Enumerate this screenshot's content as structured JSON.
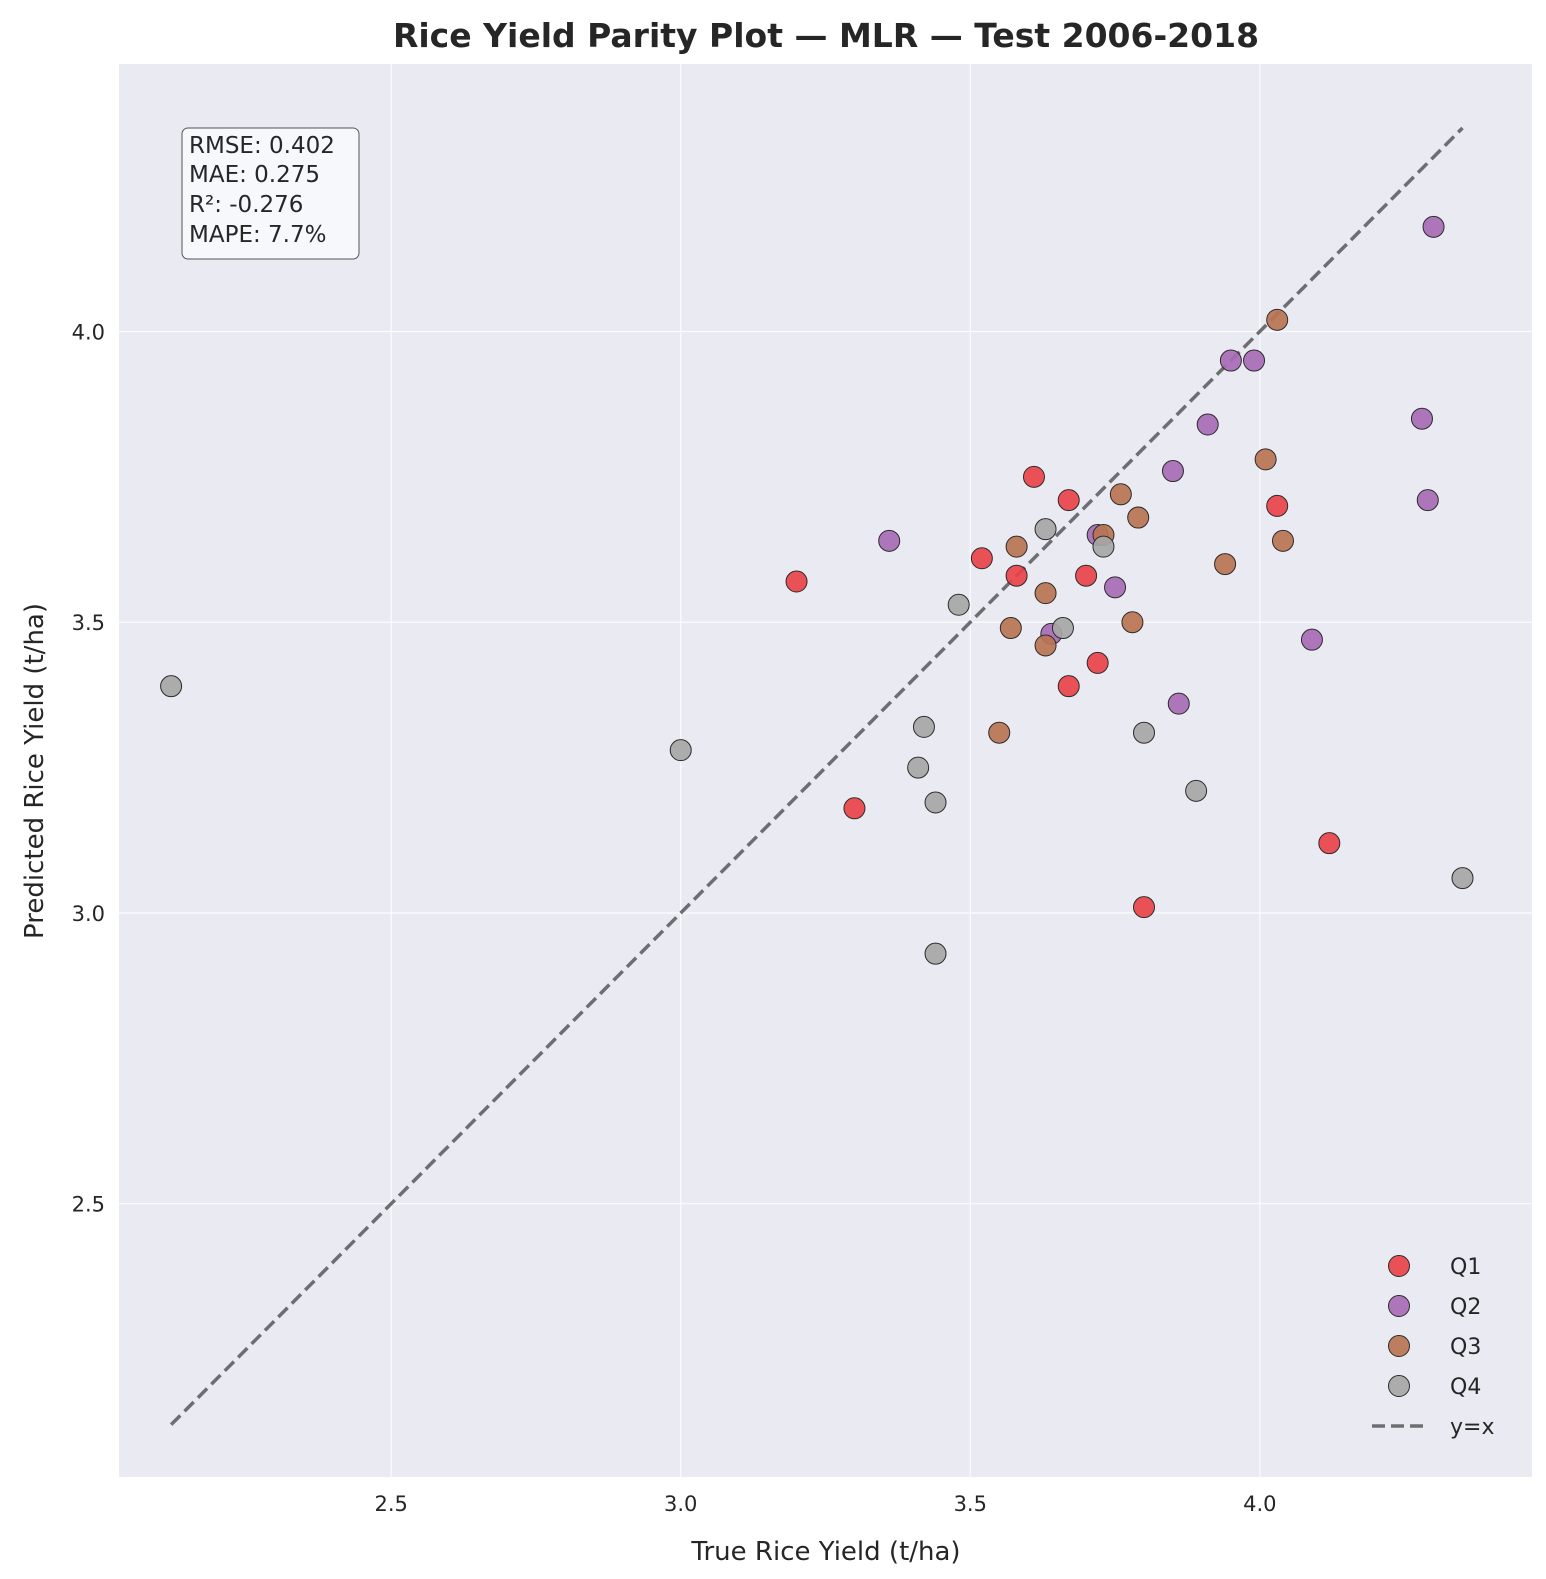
{
  "chart_data": {
    "type": "scatter",
    "title": "Rice Yield Parity Plot — MLR — Test 2006-2018",
    "xlabel": "True Rice Yield (t/ha)",
    "ylabel": "Predicted Rice Yield (t/ha)",
    "xlim": [
      2.03,
      4.47
    ],
    "ylim": [
      2.03,
      4.46
    ],
    "x_ticks": [
      "2.5",
      "3.0",
      "3.5",
      "4.0"
    ],
    "y_ticks": [
      "2.5",
      "3.0",
      "3.5",
      "4.0"
    ],
    "grid": true,
    "legend_position": "bottom-right",
    "stats": [
      "RMSE: 0.402",
      "MAE: 0.275",
      "R²: -0.276",
      "MAPE: 7.7%"
    ],
    "reference_line": {
      "name": "y=x",
      "from": [
        2.12,
        2.12
      ],
      "to": [
        4.35,
        4.35
      ],
      "color": "#6e6e72"
    },
    "series": [
      {
        "name": "Q1",
        "color": "#e8434a",
        "points": [
          [
            3.2,
            3.57
          ],
          [
            3.3,
            3.18
          ],
          [
            3.52,
            3.61
          ],
          [
            3.58,
            3.58
          ],
          [
            3.61,
            3.75
          ],
          [
            3.67,
            3.71
          ],
          [
            3.67,
            3.39
          ],
          [
            3.7,
            3.58
          ],
          [
            3.72,
            3.43
          ],
          [
            3.8,
            3.01
          ],
          [
            4.03,
            3.7
          ],
          [
            4.12,
            3.12
          ]
        ]
      },
      {
        "name": "Q2",
        "color": "#a86bb5",
        "points": [
          [
            3.36,
            3.64
          ],
          [
            3.64,
            3.48
          ],
          [
            3.72,
            3.65
          ],
          [
            3.75,
            3.56
          ],
          [
            3.85,
            3.76
          ],
          [
            3.86,
            3.36
          ],
          [
            3.91,
            3.84
          ],
          [
            3.95,
            3.95
          ],
          [
            3.99,
            3.95
          ],
          [
            4.09,
            3.47
          ],
          [
            4.28,
            3.85
          ],
          [
            4.29,
            3.71
          ],
          [
            4.3,
            4.18
          ]
        ]
      },
      {
        "name": "Q3",
        "color": "#b87352",
        "points": [
          [
            3.55,
            3.31
          ],
          [
            3.57,
            3.49
          ],
          [
            3.58,
            3.63
          ],
          [
            3.63,
            3.55
          ],
          [
            3.63,
            3.46
          ],
          [
            3.73,
            3.65
          ],
          [
            3.76,
            3.72
          ],
          [
            3.78,
            3.5
          ],
          [
            3.79,
            3.68
          ],
          [
            3.94,
            3.6
          ],
          [
            4.01,
            3.78
          ],
          [
            4.03,
            4.02
          ],
          [
            4.04,
            3.64
          ]
        ]
      },
      {
        "name": "Q4",
        "color": "#a6a6a6",
        "points": [
          [
            2.12,
            3.39
          ],
          [
            3.0,
            3.28
          ],
          [
            3.41,
            3.25
          ],
          [
            3.42,
            3.32
          ],
          [
            3.44,
            2.93
          ],
          [
            3.44,
            3.19
          ],
          [
            3.48,
            3.53
          ],
          [
            3.63,
            3.66
          ],
          [
            3.66,
            3.49
          ],
          [
            3.73,
            3.63
          ],
          [
            3.8,
            3.31
          ],
          [
            3.89,
            3.21
          ],
          [
            4.35,
            3.06
          ]
        ]
      }
    ]
  }
}
